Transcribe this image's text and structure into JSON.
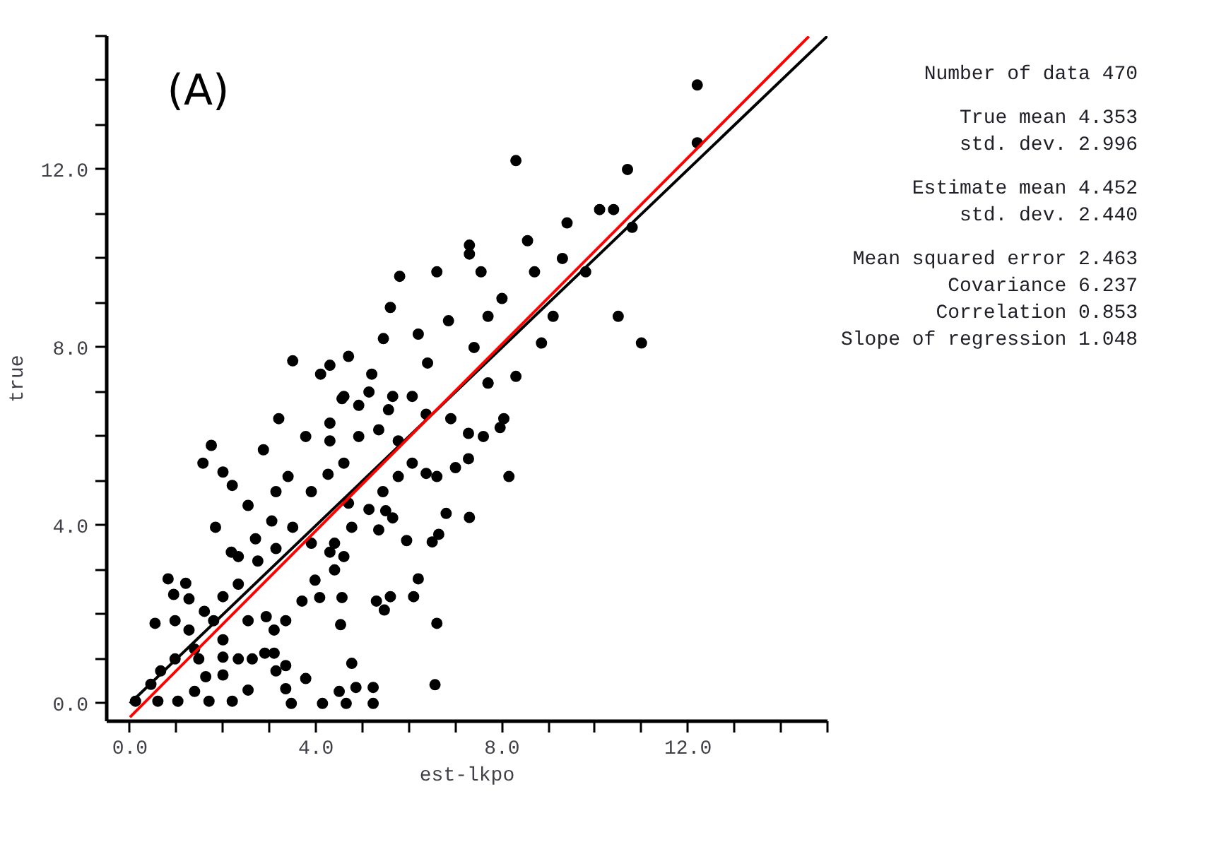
{
  "chart_data": {
    "type": "scatter",
    "title": "(A)",
    "xlabel": "est-lkpo",
    "ylabel": "true",
    "xlim": [
      -0.5,
      15
    ],
    "ylim": [
      -0.4,
      15
    ],
    "xticks": [
      {
        "value": 0,
        "label": "0.0"
      },
      {
        "value": 1,
        "label": null
      },
      {
        "value": 2,
        "label": null
      },
      {
        "value": 3,
        "label": null
      },
      {
        "value": 4,
        "label": "4.0"
      },
      {
        "value": 5,
        "label": null
      },
      {
        "value": 6,
        "label": null
      },
      {
        "value": 7,
        "label": null
      },
      {
        "value": 8,
        "label": "8.0"
      },
      {
        "value": 9,
        "label": null
      },
      {
        "value": 10,
        "label": null
      },
      {
        "value": 11,
        "label": null
      },
      {
        "value": 12,
        "label": "12.0"
      },
      {
        "value": 13,
        "label": null
      },
      {
        "value": 14,
        "label": null
      },
      {
        "value": 15,
        "label": null
      }
    ],
    "yticks": [
      {
        "value": 0,
        "label": "0.0"
      },
      {
        "value": 1,
        "label": null
      },
      {
        "value": 2,
        "label": null
      },
      {
        "value": 3,
        "label": null
      },
      {
        "value": 4,
        "label": "4.0"
      },
      {
        "value": 5,
        "label": null
      },
      {
        "value": 6,
        "label": null
      },
      {
        "value": 7,
        "label": null
      },
      {
        "value": 8,
        "label": "8.0"
      },
      {
        "value": 9,
        "label": null
      },
      {
        "value": 10,
        "label": null
      },
      {
        "value": 11,
        "label": null
      },
      {
        "value": 12,
        "label": "12.0"
      },
      {
        "value": 13,
        "label": null
      },
      {
        "value": 14,
        "label": null
      },
      {
        "value": 15,
        "label": null
      }
    ],
    "grid": false,
    "marker": "circle",
    "series": [
      {
        "color": "#000000",
        "x": [
          12.2,
          12.2,
          8.3,
          10.7,
          10.8,
          10.5,
          11.0,
          10.1,
          10.4,
          9.4,
          8.55,
          9.3,
          7.3,
          7.3,
          8.7,
          6.6,
          5.8,
          5.6,
          7.55,
          9.8,
          3.5,
          9.1,
          8.85,
          8.0,
          7.7,
          6.85,
          6.2,
          5.45,
          4.7,
          4.1,
          4.3,
          5.2,
          6.4,
          7.4,
          7.7,
          8.3,
          4.6,
          5.65,
          3.2,
          1.75,
          1.57,
          3.78,
          2.87,
          2.0,
          2.2,
          2.54,
          1.84,
          2.18,
          0.82,
          1.2,
          0.94,
          1.27,
          0.54,
          0.97,
          1.6,
          2.0,
          1.8,
          2.33,
          2.54,
          2.93,
          3.1,
          3.35,
          2.9,
          3.1,
          2.0,
          2.33,
          2.63,
          1.63,
          2.0,
          2.54,
          3.14,
          3.35,
          3.78,
          3.35,
          4.77,
          4.86,
          5.23,
          4.5,
          6.56,
          6.6,
          6.2,
          6.1,
          5.6,
          5.47,
          5.3,
          4.53,
          4.56,
          4.08,
          3.7,
          3.98,
          4.4,
          4.3,
          4.6,
          4.4,
          5.95,
          6.5,
          6.64,
          6.8,
          7.3,
          5.35,
          5.65,
          5.5,
          5.14,
          4.77,
          3.9,
          3.5,
          3.14,
          3.05,
          3.4,
          3.14,
          3.9,
          4.26,
          4.6,
          4.3,
          4.3,
          4.92,
          5.14,
          6.07,
          6.37,
          6.9,
          7.28,
          7.6,
          7.96,
          8.15,
          7.0,
          7.28,
          6.6,
          6.37,
          6.07,
          5.77,
          5.44,
          4.7,
          5.77,
          5.35,
          4.56,
          5.56,
          7.7,
          8.04,
          4.92,
          1.27,
          1.39,
          0.97,
          0.66,
          0.45,
          0.12,
          0.6,
          1.03,
          1.39,
          1.7,
          2.2,
          3.47,
          4.14,
          4.65,
          5.23,
          2.7,
          2.33,
          2.75,
          2.0,
          1.48
        ],
        "values": [
          13.9,
          12.6,
          12.2,
          12.0,
          10.7,
          8.7,
          8.1,
          11.1,
          11.1,
          10.8,
          10.4,
          10.0,
          10.1,
          10.3,
          9.7,
          9.7,
          9.6,
          8.9,
          9.7,
          9.7,
          7.7,
          8.7,
          8.1,
          9.1,
          8.7,
          8.6,
          8.3,
          8.2,
          7.8,
          7.4,
          7.6,
          7.4,
          7.65,
          8.0,
          7.2,
          7.35,
          6.9,
          6.9,
          6.4,
          5.8,
          5.4,
          6.0,
          5.7,
          5.2,
          4.9,
          4.45,
          3.96,
          3.4,
          2.8,
          2.7,
          2.45,
          2.35,
          1.8,
          1.86,
          2.07,
          2.4,
          1.86,
          2.68,
          1.86,
          1.95,
          1.65,
          1.86,
          1.13,
          1.13,
          1.04,
          1.0,
          1.0,
          0.6,
          0.64,
          0.3,
          0.73,
          0.85,
          0.56,
          0.33,
          0.9,
          0.36,
          0.36,
          0.27,
          0.42,
          1.8,
          2.8,
          2.4,
          2.4,
          2.1,
          2.3,
          1.77,
          2.38,
          2.38,
          2.3,
          2.77,
          3.0,
          3.4,
          3.3,
          3.6,
          3.66,
          3.63,
          3.8,
          4.27,
          4.18,
          3.9,
          4.17,
          4.33,
          4.36,
          3.96,
          3.6,
          3.96,
          3.48,
          4.1,
          5.1,
          4.76,
          4.76,
          5.15,
          5.4,
          5.9,
          6.3,
          6.0,
          7.0,
          6.9,
          6.5,
          6.4,
          6.07,
          6.0,
          6.2,
          5.1,
          5.3,
          5.5,
          5.1,
          5.17,
          5.4,
          5.1,
          4.76,
          4.5,
          5.9,
          6.15,
          6.85,
          6.6,
          7.2,
          6.4,
          6.7,
          1.65,
          1.22,
          1.0,
          0.73,
          0.43,
          0.05,
          0.05,
          0.05,
          0.27,
          0.05,
          0.05,
          0.0,
          0.0,
          0.0,
          0.0,
          3.7,
          3.3,
          3.2,
          1.43,
          1.0
        ]
      },
      {
        "type": "line",
        "marker": "none",
        "color": "#000000",
        "x": [
          0,
          15
        ],
        "values": [
          0,
          15
        ]
      },
      {
        "type": "line",
        "marker": "none",
        "color": "#ff0000",
        "x": [
          0,
          14.6
        ],
        "values": [
          -0.31,
          14.99
        ]
      }
    ],
    "annotations": [
      "Number of data 470",
      "True mean 4.353",
      "std. dev. 2.996",
      "Estimate mean 4.452",
      "std. dev. 2.440",
      "Mean squared error 2.463",
      "Covariance 6.237",
      "Correlation 0.853",
      "Slope of regression 1.048"
    ]
  }
}
